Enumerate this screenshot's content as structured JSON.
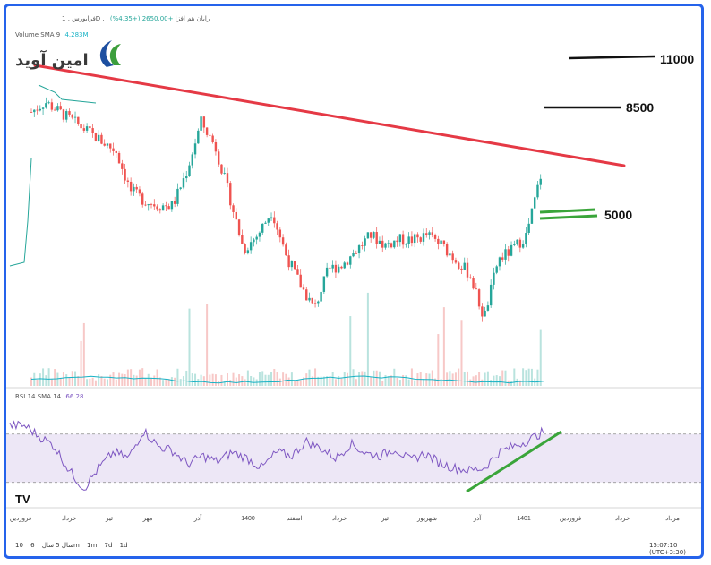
{
  "header": {
    "symbol_line": "فرابورس . 1D . رایان هم افزا",
    "change": "+2650.00 (+4.35%)",
    "volume_label": "Volume SMA 9",
    "volume_value": "4.283M",
    "rsi_label": "RSI 14 SMA 14",
    "rsi_value": "66.28"
  },
  "logo": {
    "text": "امین آوید"
  },
  "brand_mark": "TV",
  "colors": {
    "up": "#26a69a",
    "down": "#ef5350",
    "trendline": "#e53945",
    "support": "#3aa53a",
    "rsi_line": "#7e57c2",
    "rsi_band": "#ede7f6",
    "frame": "#2563eb"
  },
  "chart_data": {
    "type": "candlestick",
    "price_levels": [
      {
        "label": "11000",
        "value": 11000
      },
      {
        "label": "8500",
        "value": 8500
      },
      {
        "label": "5000",
        "value": 5000
      }
    ],
    "x_tick_labels": [
      "فروردین",
      "خرداد",
      "تیر",
      "مهر",
      "آذر",
      "1400",
      "اسفند",
      "خرداد",
      "تیر",
      "شهریور",
      "آذر",
      "1401",
      "فروردین",
      "خرداد",
      "مرداد"
    ],
    "price_series_approx": [
      7.7,
      7.9,
      7.7,
      7.5,
      7.3,
      7.1,
      6.9,
      6.1,
      5.9,
      5.8,
      5.8,
      6.5,
      7.5,
      7.0,
      6.0,
      4.9,
      5.2,
      5.7,
      4.8,
      4.2,
      3.7,
      4.5,
      4.6,
      4.9,
      5.2,
      5.0,
      5.1,
      5.1,
      5.2,
      5.0,
      4.7,
      4.4,
      3.5,
      4.7,
      4.9,
      5.2,
      6.4
    ],
    "rsi_series_approx": [
      77,
      77,
      68,
      60,
      40,
      25,
      42,
      55,
      50,
      73,
      60,
      56,
      45,
      52,
      47,
      55,
      50,
      42,
      55,
      52,
      64,
      58,
      50,
      62,
      54,
      52,
      58,
      48,
      54,
      46,
      42,
      40,
      42,
      55,
      60,
      65,
      72
    ],
    "rsi_band": [
      30,
      70
    ],
    "annotations": [
      "trendline-resistance",
      "support-5000",
      "rsi-support-trendline"
    ]
  },
  "timeframes": [
    "10 سال",
    "5 سال",
    "6m",
    "1m",
    "7d",
    "1d"
  ],
  "clock": "15:07:10 (UTC+3:30)"
}
